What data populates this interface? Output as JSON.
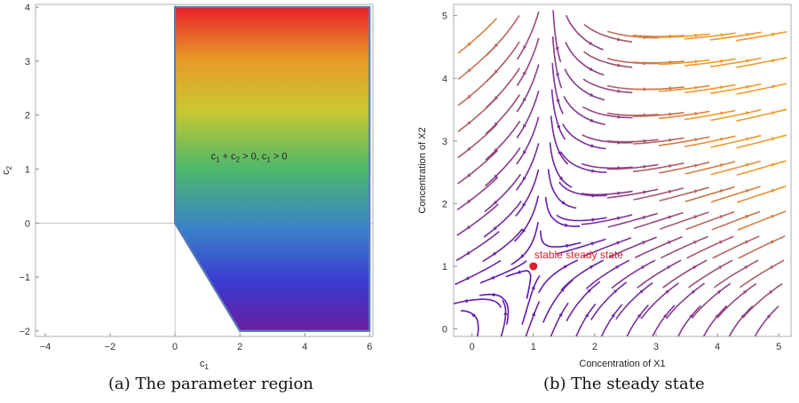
{
  "captions": {
    "left": "(a)  The parameter region",
    "right": "(b)  The steady state"
  },
  "chart_data": [
    {
      "type": "area",
      "xlabel": "c",
      "xlabel_sub": "1",
      "ylabel": "c",
      "ylabel_sub": "2",
      "xlim": [
        -4.3,
        6.1
      ],
      "ylim": [
        -2.1,
        4.05
      ],
      "xticks": [
        -4,
        -2,
        0,
        2,
        4,
        6
      ],
      "yticks": [
        -2,
        -1,
        0,
        1,
        2,
        3,
        4
      ],
      "region_vertices": [
        [
          0,
          4
        ],
        [
          6,
          4
        ],
        [
          6,
          -2
        ],
        [
          2,
          -2
        ],
        [
          0,
          0
        ]
      ],
      "region_label": "c1 + c2 > 0, c1 > 0",
      "annotation": {
        "parts": [
          "c",
          "1",
          " + c",
          "2",
          " > 0, c",
          "1",
          " > 0"
        ],
        "x": 1.0,
        "y": 1.25
      },
      "fill_gradient": [
        "#e8202a",
        "#e89a28",
        "#c8c832",
        "#4cb86c",
        "#3a84c8",
        "#3a3ad0",
        "#6a1ea0"
      ],
      "edge_color": "#5a7ab8"
    },
    {
      "type": "streamplot",
      "xlabel": "Concentration of X1",
      "ylabel": "Concentration of X2",
      "xlim": [
        -0.3,
        5.2
      ],
      "ylim": [
        -0.12,
        5.18
      ],
      "xticks": [
        0,
        1,
        2,
        3,
        4,
        5
      ],
      "yticks": [
        0,
        1,
        2,
        3,
        4,
        5
      ],
      "steady_state": {
        "x": 1,
        "y": 1,
        "label": "stable steady state",
        "color": "#e01e28"
      },
      "color_low": "#5b14b4",
      "color_high": "#f09a28"
    }
  ]
}
